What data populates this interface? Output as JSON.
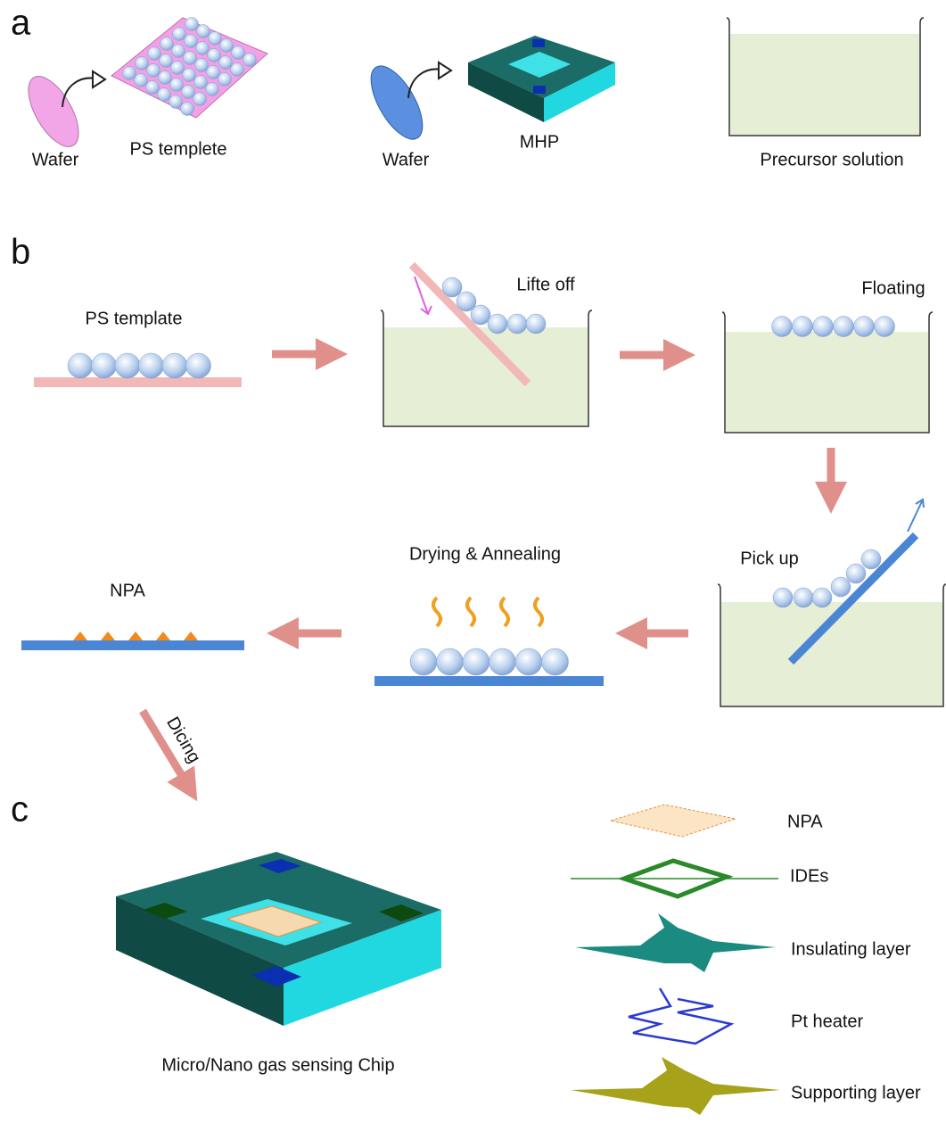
{
  "panel_a": {
    "letter": "a",
    "wafer_1": "Wafer",
    "ps_template": "PS templete",
    "wafer_2": "Wafer",
    "mhp": "MHP",
    "precursor": "Precursor solution"
  },
  "panel_b": {
    "letter": "b",
    "ps_template": "PS template",
    "lift_off": "Lifte off",
    "floating": "Floating",
    "pick_up": "Pick up",
    "drying": "Drying & Annealing",
    "npa": "NPA",
    "dicing": "Dicing"
  },
  "panel_c": {
    "letter": "c",
    "chip": "Micro/Nano gas sensing Chip",
    "layers": [
      "NPA",
      "IDEs",
      "Insulating layer",
      "Pt heater",
      "Supporting layer"
    ]
  }
}
